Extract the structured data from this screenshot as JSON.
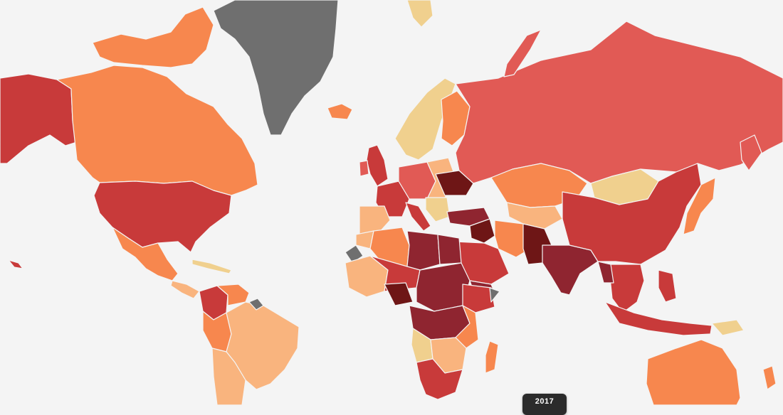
{
  "map": {
    "scale": {
      "very_low": "#f0d08e",
      "low": "#f9b47e",
      "medium": "#f7874e",
      "high": "#e15a55",
      "very_high": "#c83a3a",
      "extreme": "#8f2530",
      "severe": "#6e1616",
      "no_data": "#6f6f6f"
    },
    "background": "#f4f4f4"
  },
  "timeline": {
    "year_label": "2017"
  },
  "regions": [
    {
      "id": "greenland",
      "level": "no_data"
    },
    {
      "id": "canada",
      "level": "medium"
    },
    {
      "id": "alaska",
      "level": "very_high"
    },
    {
      "id": "usa",
      "level": "very_high"
    },
    {
      "id": "mexico",
      "level": "medium"
    },
    {
      "id": "russia",
      "level": "high"
    },
    {
      "id": "china",
      "level": "very_high"
    },
    {
      "id": "india",
      "level": "extreme"
    },
    {
      "id": "pakistan",
      "level": "severe"
    },
    {
      "id": "australia",
      "level": "medium"
    },
    {
      "id": "brazil",
      "level": "low"
    },
    {
      "id": "libya",
      "level": "extreme"
    },
    {
      "id": "nigeria",
      "level": "severe"
    },
    {
      "id": "iraq",
      "level": "severe"
    },
    {
      "id": "mongolia",
      "level": "very_low"
    },
    {
      "id": "kazakhstan",
      "level": "medium"
    },
    {
      "id": "madagascar",
      "level": "medium"
    }
  ]
}
